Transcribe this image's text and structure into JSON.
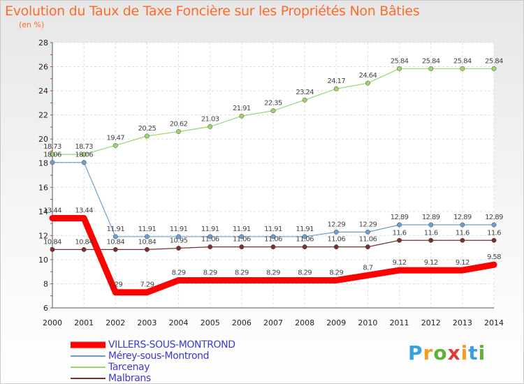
{
  "title": "Evolution du Taux de Taxe Foncière sur les Propriétés Non Bâties",
  "unit": "(en %)",
  "logo": {
    "text": [
      "P",
      "r",
      "o",
      "x",
      "i",
      "t",
      "i"
    ],
    "colors": [
      "#3aa0dc",
      "#f0a020",
      "#5fb13a",
      "#e03a3a",
      "#f0a020",
      "#3aa0dc",
      "#5fb13a"
    ]
  },
  "chart_data": {
    "type": "line",
    "title": "Evolution du Taux de Taxe Foncière sur les Propriétés Non Bâties",
    "ylabel": "(en %)",
    "xlabel": "",
    "ylim": [
      6,
      28
    ],
    "yticks": [
      6,
      8,
      10,
      12,
      14,
      16,
      18,
      20,
      22,
      24,
      26,
      28
    ],
    "categories": [
      "2000",
      "2001",
      "2002",
      "2003",
      "2004",
      "2005",
      "2006",
      "2007",
      "2008",
      "2009",
      "2010",
      "2011",
      "2012",
      "2013",
      "2014"
    ],
    "series": [
      {
        "name": "VILLERS-SOUS-MONTROND",
        "color": "#ff0000",
        "width": 9,
        "values": [
          13.44,
          13.44,
          7.29,
          7.29,
          8.29,
          8.29,
          8.29,
          8.29,
          8.29,
          8.29,
          8.7,
          9.12,
          9.12,
          9.12,
          9.58
        ]
      },
      {
        "name": "Mérey-sous-Montrond",
        "color": "#6a9fd0",
        "width": 1.2,
        "values": [
          18.06,
          18.06,
          11.91,
          11.91,
          11.91,
          11.91,
          11.91,
          11.91,
          11.91,
          12.29,
          12.29,
          12.89,
          12.89,
          12.89,
          12.89
        ]
      },
      {
        "name": "Tarcenay",
        "color": "#9ad66b",
        "width": 1.2,
        "values": [
          18.73,
          18.73,
          19.47,
          20.25,
          20.62,
          21.03,
          21.91,
          22.35,
          23.24,
          24.17,
          24.64,
          25.84,
          25.84,
          25.84,
          25.84
        ]
      },
      {
        "name": "Malbrans",
        "color": "#7a3030",
        "width": 1.2,
        "values": [
          10.84,
          10.84,
          10.84,
          10.84,
          10.95,
          11.06,
          11.06,
          11.06,
          11.06,
          11.06,
          11.06,
          11.6,
          11.6,
          11.6,
          11.6
        ]
      }
    ]
  }
}
